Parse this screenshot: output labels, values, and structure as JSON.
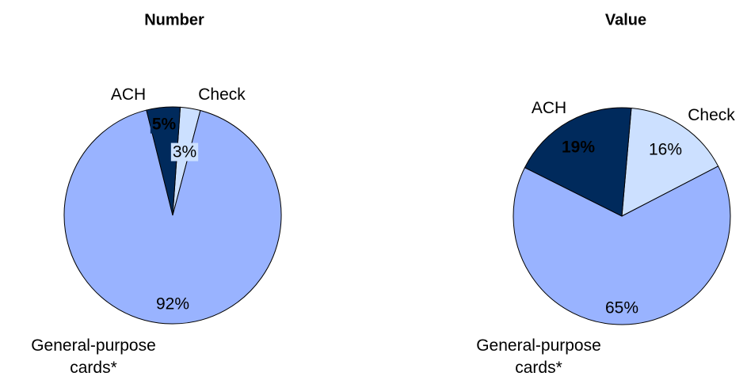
{
  "chart_data": [
    {
      "type": "pie",
      "title": "Number",
      "categories": [
        "Check",
        "General-purpose cards*",
        "ACH"
      ],
      "values": [
        3,
        92,
        5
      ],
      "value_labels": [
        "3%",
        "92%",
        "5%"
      ],
      "colors": [
        "#cce0ff",
        "#99b3ff",
        "#002a5c"
      ]
    },
    {
      "type": "pie",
      "title": "Value",
      "categories": [
        "Check",
        "General-purpose cards*",
        "ACH"
      ],
      "values": [
        16,
        65,
        19
      ],
      "value_labels": [
        "16%",
        "65%",
        "19%"
      ],
      "colors": [
        "#cce0ff",
        "#99b3ff",
        "#002a5c"
      ]
    }
  ]
}
